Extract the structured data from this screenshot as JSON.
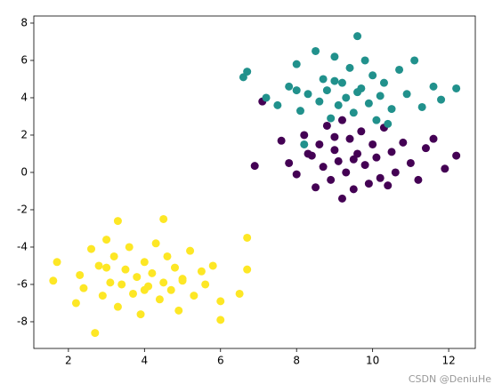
{
  "chart_data": {
    "type": "scatter",
    "annotation": "CSDN @DeniuHe",
    "xlim": [
      1.09,
      12.7
    ],
    "ylim": [
      -9.43,
      8.38
    ],
    "xticks": [
      2,
      4,
      6,
      8,
      10,
      12
    ],
    "yticks": [
      -8,
      -6,
      -4,
      -2,
      0,
      2,
      4,
      6,
      8
    ],
    "series": [
      {
        "color": "#440154",
        "x": [
          6.9,
          7.1,
          7.6,
          7.8,
          8.0,
          8.2,
          8.3,
          8.5,
          8.6,
          8.7,
          8.8,
          8.9,
          9.0,
          9.1,
          9.2,
          9.2,
          9.3,
          9.4,
          9.5,
          9.6,
          9.7,
          9.8,
          9.9,
          10.0,
          10.1,
          10.2,
          10.3,
          10.5,
          10.6,
          10.8,
          11.0,
          11.2,
          11.4,
          11.6,
          11.9,
          12.2,
          9.0,
          9.5,
          8.4,
          10.4
        ],
        "values": [
          0.35,
          3.8,
          1.7,
          0.5,
          -0.1,
          2.0,
          1.0,
          -0.8,
          1.5,
          0.3,
          2.5,
          -0.4,
          1.2,
          0.6,
          -1.4,
          2.8,
          0.0,
          1.8,
          -0.9,
          1.0,
          2.2,
          0.4,
          -0.6,
          1.5,
          0.8,
          -0.3,
          2.4,
          1.1,
          0.0,
          1.6,
          0.5,
          -0.4,
          1.3,
          1.8,
          0.2,
          0.9,
          1.9,
          0.7,
          0.9,
          -0.7
        ]
      },
      {
        "color": "#21918c",
        "x": [
          6.6,
          6.7,
          7.2,
          7.5,
          7.8,
          8.0,
          8.1,
          8.3,
          8.5,
          8.6,
          8.7,
          8.8,
          8.9,
          9.0,
          9.1,
          9.2,
          9.3,
          9.4,
          9.5,
          9.6,
          9.7,
          9.8,
          9.9,
          10.0,
          10.1,
          10.2,
          10.3,
          10.5,
          10.7,
          10.9,
          11.1,
          11.3,
          11.6,
          11.8,
          12.2,
          8.2,
          9.6,
          10.4,
          9.0,
          8.0
        ],
        "values": [
          5.1,
          5.4,
          4.0,
          3.6,
          4.6,
          5.8,
          3.3,
          4.2,
          6.5,
          3.8,
          5.0,
          4.4,
          2.9,
          6.2,
          3.6,
          4.8,
          4.0,
          5.6,
          3.2,
          7.3,
          4.5,
          6.0,
          3.7,
          5.2,
          2.8,
          4.1,
          4.8,
          3.4,
          5.5,
          4.2,
          6.0,
          3.5,
          4.6,
          3.9,
          4.5,
          1.5,
          4.3,
          2.6,
          4.9,
          4.4
        ]
      },
      {
        "color": "#fde725",
        "x": [
          1.6,
          1.7,
          2.2,
          2.3,
          2.4,
          2.6,
          2.7,
          2.8,
          2.9,
          3.0,
          3.1,
          3.2,
          3.3,
          3.3,
          3.4,
          3.5,
          3.6,
          3.7,
          3.8,
          3.9,
          4.0,
          4.1,
          4.2,
          4.3,
          4.4,
          4.5,
          4.5,
          4.6,
          4.7,
          4.8,
          4.9,
          5.0,
          5.2,
          5.3,
          5.5,
          5.6,
          5.8,
          6.0,
          6.0,
          6.5,
          6.7,
          6.7,
          3.0,
          4.0,
          5.0
        ],
        "values": [
          -5.8,
          -4.8,
          -7.0,
          -5.5,
          -6.2,
          -4.1,
          -8.6,
          -5.0,
          -6.6,
          -3.6,
          -5.9,
          -4.5,
          -2.6,
          -7.2,
          -6.0,
          -5.2,
          -4.0,
          -6.5,
          -5.6,
          -7.6,
          -4.8,
          -6.1,
          -5.4,
          -3.8,
          -6.8,
          -2.5,
          -5.9,
          -4.5,
          -6.3,
          -5.1,
          -7.4,
          -5.7,
          -4.2,
          -6.6,
          -5.3,
          -6.0,
          -5.0,
          -6.9,
          -7.9,
          -6.5,
          -3.5,
          -5.2,
          -5.1,
          -6.3,
          -5.8
        ]
      }
    ]
  }
}
